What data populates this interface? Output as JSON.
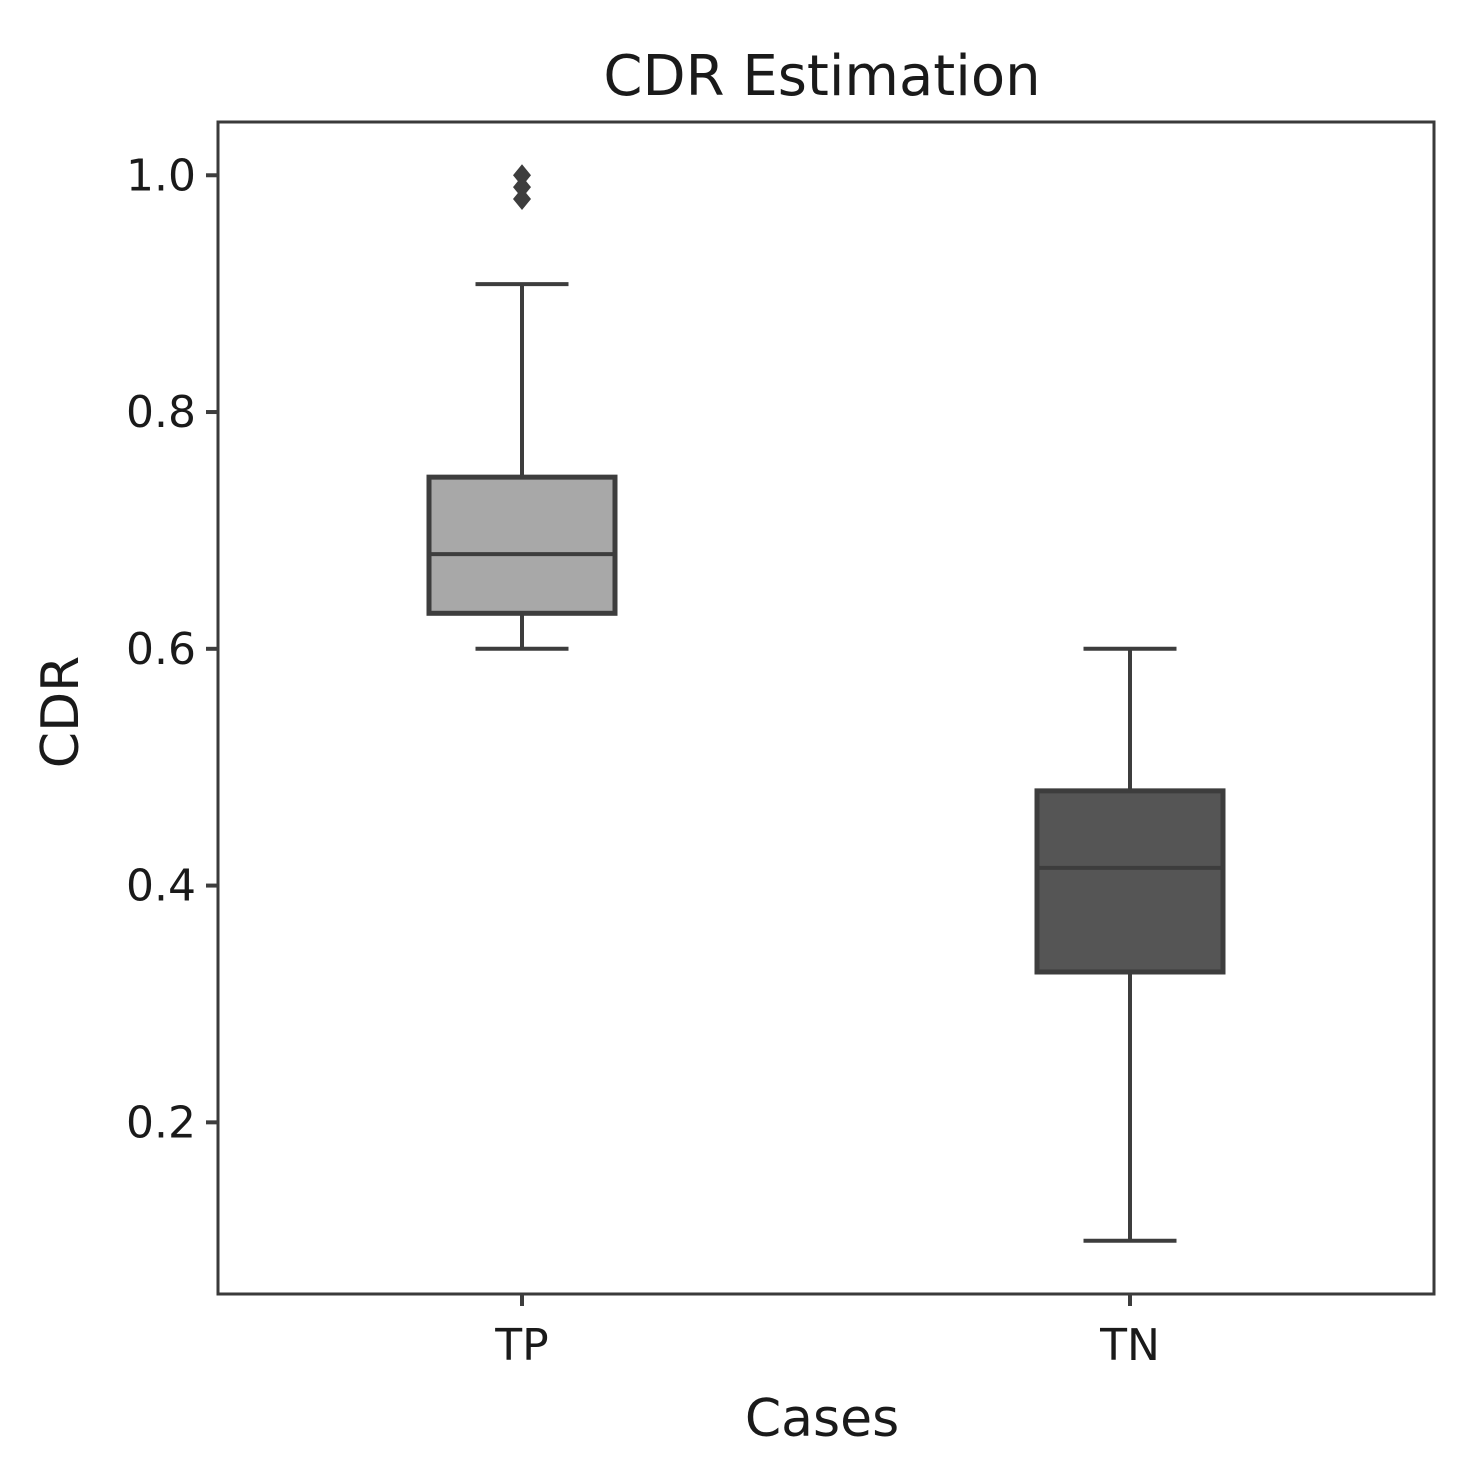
{
  "chart_data": {
    "type": "box",
    "title": "CDR Estimation",
    "xlabel": "Cases",
    "ylabel": "CDR",
    "ylim": [
      0.055,
      1.045
    ],
    "yticks": [
      0.2,
      0.4,
      0.6,
      0.8,
      1.0
    ],
    "ytick_labels": [
      "0.2",
      "0.4",
      "0.6",
      "0.8",
      "1.0"
    ],
    "categories": [
      "TP",
      "TN"
    ],
    "series": [
      {
        "name": "TP",
        "color": "#a8a8a8",
        "whisker_low": 0.6,
        "q1": 0.63,
        "median": 0.68,
        "q3": 0.745,
        "whisker_high": 0.908,
        "outliers": [
          0.98,
          0.99,
          1.0
        ]
      },
      {
        "name": "TN",
        "color": "#555555",
        "whisker_low": 0.1,
        "q1": 0.327,
        "median": 0.415,
        "q3": 0.48,
        "whisker_high": 0.6,
        "outliers": []
      }
    ]
  }
}
